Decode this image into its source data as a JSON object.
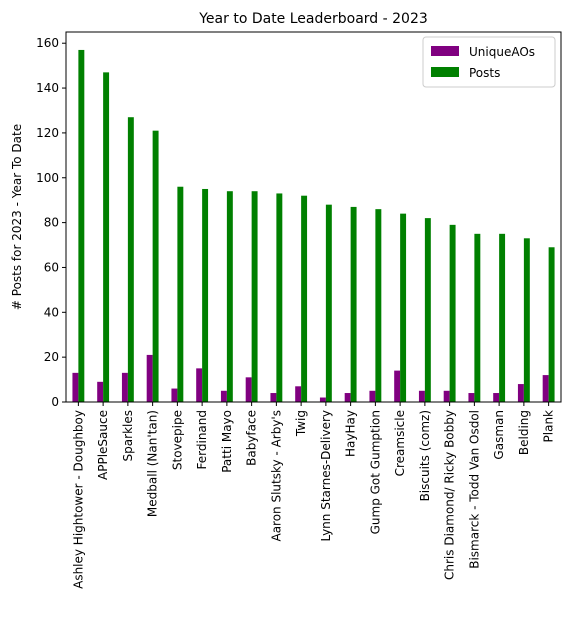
{
  "chart_data": {
    "type": "bar",
    "title": "Year to Date Leaderboard - 2023",
    "xlabel": "",
    "ylabel": "# Posts for 2023 - Year To Date",
    "ylim": [
      0,
      165
    ],
    "yticks": [
      0,
      20,
      40,
      60,
      80,
      100,
      120,
      140,
      160
    ],
    "grid": false,
    "legend_position": "top-right",
    "categories": [
      "Ashley Hightower - Doughboy",
      "APPleSauce",
      "Sparkles",
      "Medball (Nan'tan)",
      "Stovepipe",
      "Ferdinand",
      "Patti Mayo",
      "Babyface",
      "Aaron Slutsky - Arby's",
      "Twig",
      "Lynn Starnes-Delivery",
      "HayHay",
      "Gump Got Gumption",
      "Creamsicle",
      "Biscuits (comz)",
      "Chris Diamond/ Ricky Bobby",
      "Bismarck - Todd Van Osdol",
      "Gasman",
      "Belding",
      "Plank"
    ],
    "series": [
      {
        "name": "UniqueAOs",
        "color": "#800080",
        "values": [
          13,
          9,
          13,
          21,
          6,
          15,
          5,
          11,
          4,
          7,
          2,
          4,
          5,
          14,
          5,
          5,
          4,
          4,
          8,
          12
        ]
      },
      {
        "name": "Posts",
        "color": "#008000",
        "values": [
          157,
          147,
          127,
          121,
          96,
          95,
          94,
          94,
          93,
          92,
          88,
          87,
          86,
          84,
          82,
          79,
          75,
          75,
          73,
          69
        ]
      }
    ]
  }
}
